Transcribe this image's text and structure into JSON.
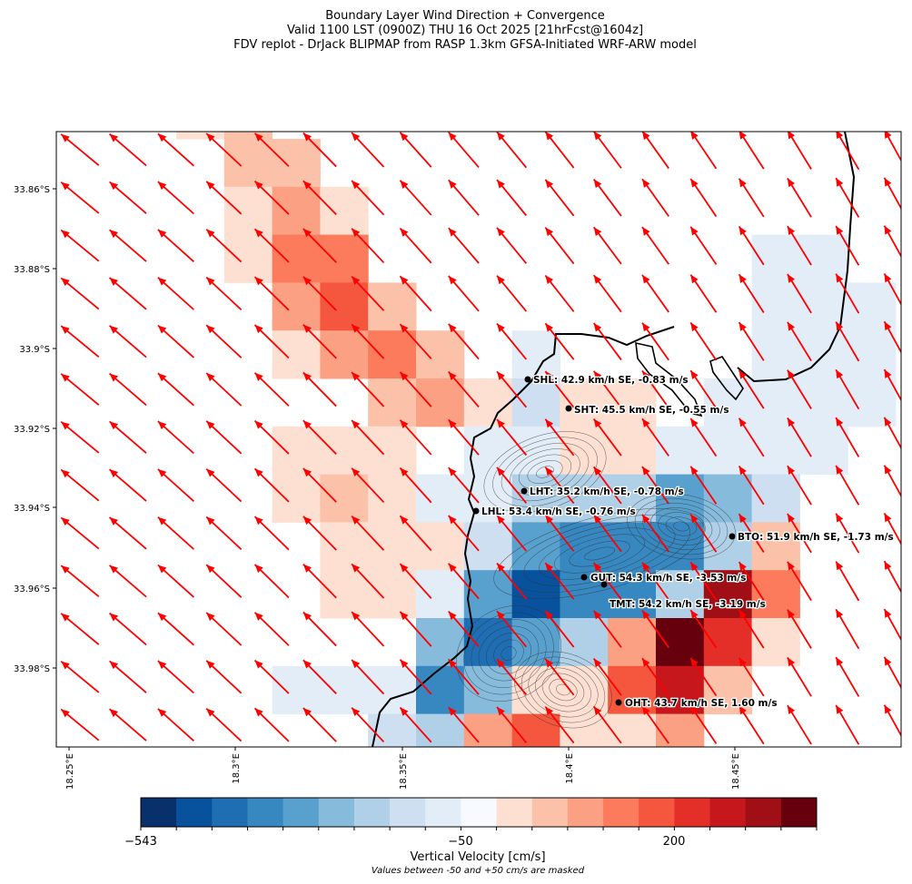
{
  "title": {
    "line1": "Boundary Layer Wind Direction + Convergence",
    "line2": "Valid 1100 LST (0900Z) THU 16 Oct 2025 [21hrFcst@1604z]",
    "line3": "FDV replot - DrJack BLIPMAP from RASP 1.3km GFSA-Initiated WRF-ARW model"
  },
  "axes": {
    "y_ticks": [
      "33.86°S",
      "33.88°S",
      "33.9°S",
      "33.92°S",
      "33.94°S",
      "33.96°S",
      "33.98°S"
    ],
    "x_ticks": [
      "18.25°E",
      "18.3°E",
      "18.35°E",
      "18.4°E",
      "18.45°E"
    ]
  },
  "colors": {
    "palette": [
      "#08306b",
      "#08519c",
      "#1f6eb3",
      "#3787c0",
      "#58a1cf",
      "#86bbdb",
      "#afd0e6",
      "#cddff0",
      "#e2edf8",
      "#f7fbff",
      "#fee0d2",
      "#fcc2a9",
      "#fca083",
      "#fb7b5c",
      "#f4573d",
      "#e32f27",
      "#c5171c",
      "#a00f15",
      "#67000d"
    ],
    "arrow": "#ff0000",
    "coast": "#000000"
  },
  "chart_data": {
    "type": "heatmap",
    "description_units": "color index into palette; -1 = masked (between -50 and +50 cm/s)",
    "grid": [
      [
        -1,
        -1,
        -1,
        10,
        11,
        -1,
        -1,
        -1,
        -1,
        -1,
        -1,
        -1,
        -1,
        -1,
        -1,
        -1,
        -1,
        -1,
        -1
      ],
      [
        -1,
        -1,
        -1,
        -1,
        11,
        11,
        -1,
        -1,
        -1,
        -1,
        -1,
        -1,
        -1,
        -1,
        -1,
        -1,
        -1,
        -1,
        -1
      ],
      [
        -1,
        -1,
        -1,
        -1,
        10,
        12,
        10,
        -1,
        -1,
        -1,
        -1,
        -1,
        -1,
        -1,
        -1,
        -1,
        -1,
        -1,
        -1
      ],
      [
        -1,
        -1,
        -1,
        -1,
        10,
        13,
        13,
        -1,
        -1,
        -1,
        -1,
        -1,
        -1,
        -1,
        -1,
        8,
        8,
        -1,
        -1
      ],
      [
        -1,
        -1,
        -1,
        -1,
        -1,
        12,
        14,
        11,
        -1,
        -1,
        -1,
        -1,
        -1,
        -1,
        -1,
        8,
        8,
        8,
        -1
      ],
      [
        -1,
        -1,
        -1,
        -1,
        -1,
        10,
        12,
        13,
        11,
        -1,
        8,
        -1,
        -1,
        -1,
        -1,
        8,
        8,
        8,
        -1
      ],
      [
        -1,
        -1,
        -1,
        -1,
        -1,
        -1,
        -1,
        11,
        12,
        10,
        7,
        10,
        10,
        -1,
        8,
        8,
        8,
        8,
        -1
      ],
      [
        -1,
        -1,
        -1,
        -1,
        -1,
        10,
        10,
        10,
        -1,
        8,
        8,
        10,
        10,
        8,
        8,
        8,
        8,
        -1,
        -1
      ],
      [
        -1,
        -1,
        -1,
        -1,
        -1,
        10,
        11,
        10,
        8,
        8,
        6,
        6,
        6,
        4,
        5,
        7,
        -1,
        -1,
        -1
      ],
      [
        -1,
        -1,
        -1,
        -1,
        -1,
        -1,
        10,
        10,
        10,
        7,
        4,
        3,
        3,
        3,
        6,
        11,
        -1,
        -1,
        -1
      ],
      [
        -1,
        -1,
        -1,
        -1,
        -1,
        -1,
        10,
        10,
        8,
        4,
        1,
        3,
        3,
        6,
        17,
        13,
        -1,
        -1,
        -1
      ],
      [
        -1,
        -1,
        -1,
        -1,
        -1,
        -1,
        -1,
        -1,
        5,
        2,
        4,
        6,
        12,
        18,
        15,
        10,
        -1,
        -1,
        -1
      ],
      [
        -1,
        -1,
        -1,
        -1,
        -1,
        8,
        8,
        8,
        3,
        5,
        10,
        10,
        14,
        16,
        11,
        -1,
        -1,
        -1,
        -1
      ],
      [
        -1,
        -1,
        -1,
        -1,
        -1,
        -1,
        -1,
        7,
        6,
        12,
        14,
        10,
        10,
        12,
        -1,
        -1,
        -1,
        -1,
        -1
      ]
    ],
    "wind_direction": "SE",
    "colorbar": {
      "label": "Vertical Velocity [cm/s]",
      "note": "Values between -50 and +50 cm/s are masked",
      "tick_labels": [
        "−543",
        "−50",
        "200"
      ]
    },
    "stations": [
      {
        "label": "SHL: 42.9 km/h SE, -0.83 m/s"
      },
      {
        "label": "SHT: 45.5 km/h SE, -0.55 m/s"
      },
      {
        "label": "LHT: 35.2 km/h SE, -0.78 m/s"
      },
      {
        "label": "LHL: 53.4 km/h SE, -0.76 m/s"
      },
      {
        "label": "BTO: 51.9 km/h SE, -1.73 m/s"
      },
      {
        "label": "GUT: 54.3 km/h SE, -3.53 m/s"
      },
      {
        "label": "TMT: 54.2 km/h SE, -3.19 m/s"
      },
      {
        "label": "OHT: 43.7 km/h SE, 1.60 m/s"
      }
    ]
  }
}
